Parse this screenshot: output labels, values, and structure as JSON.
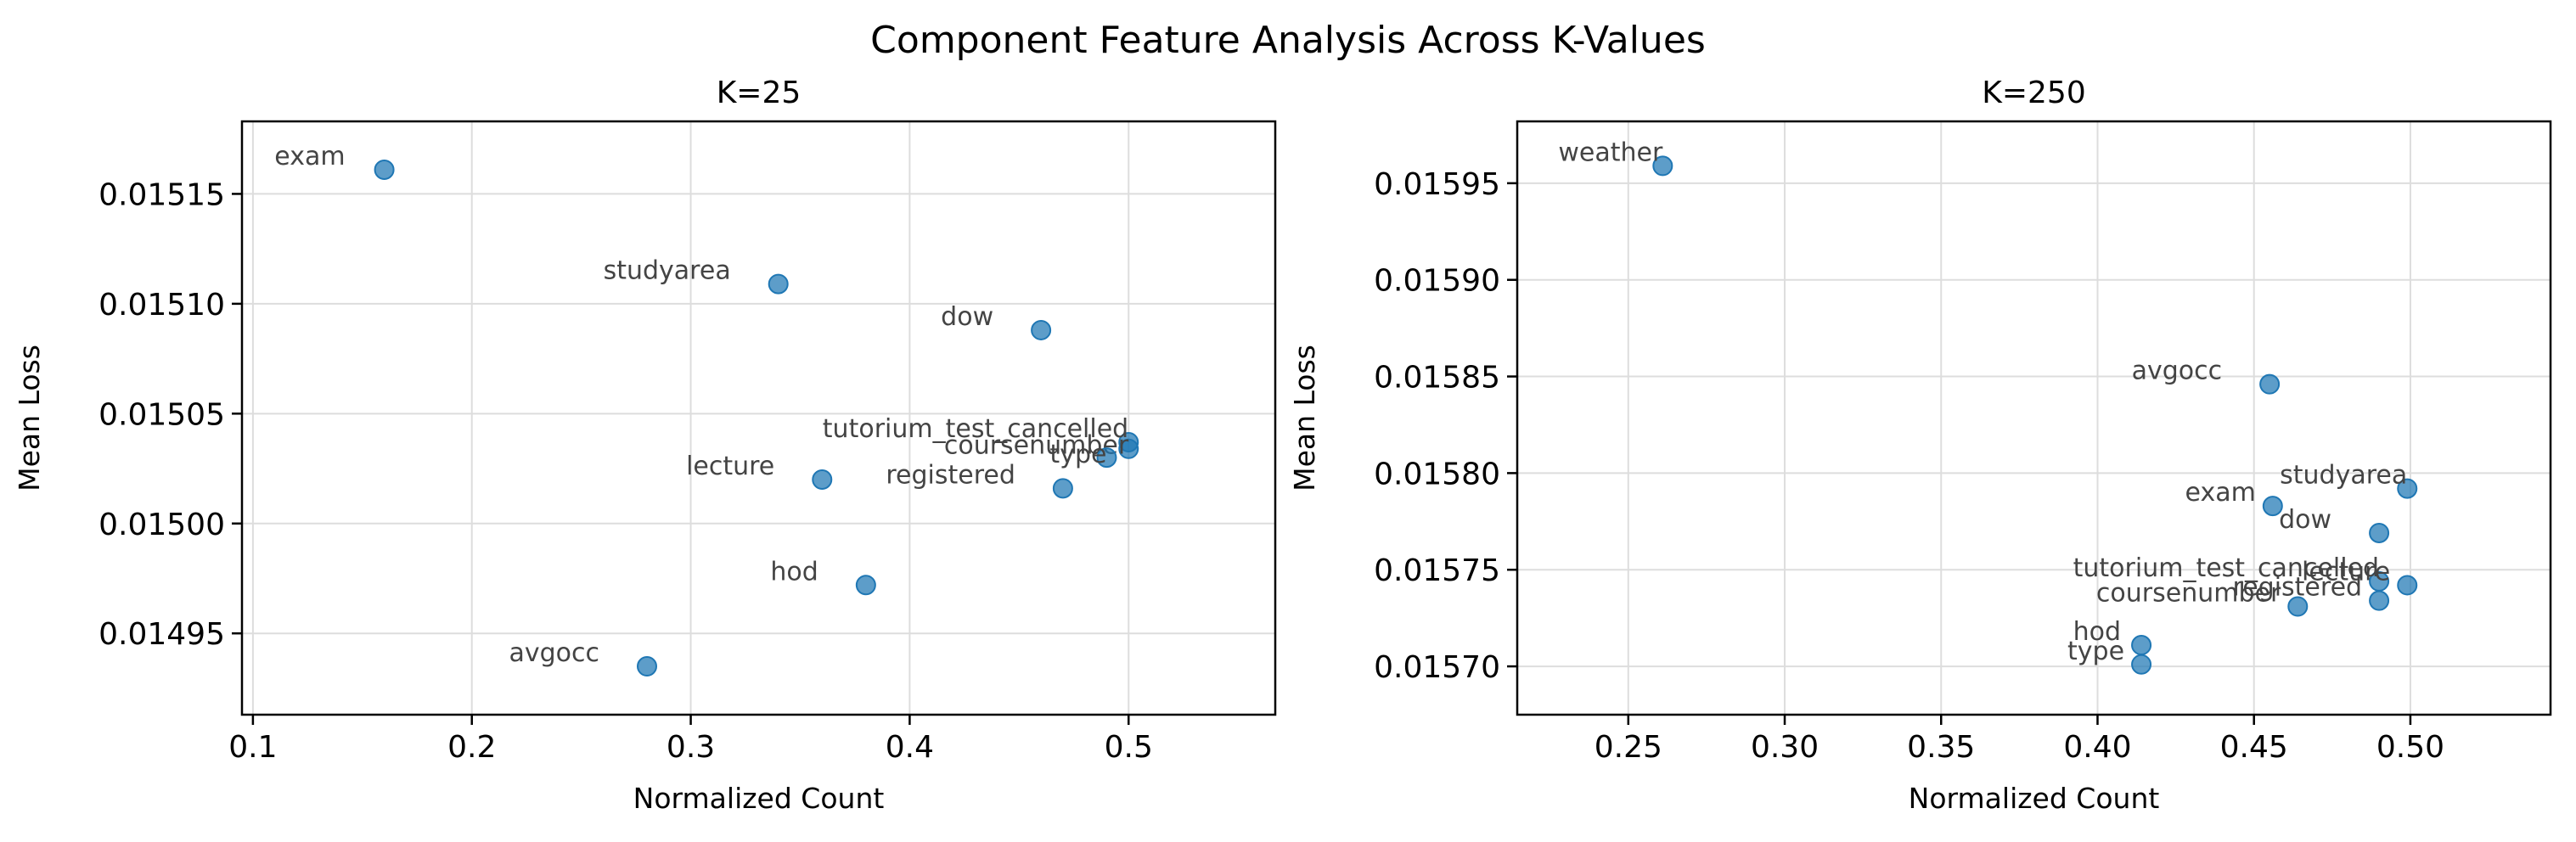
{
  "figure": {
    "title": "Component Feature Analysis Across K-Values"
  },
  "style": {
    "point_color": "#1f77b4",
    "label_color": "#444444",
    "grid_color": "#dddddd"
  },
  "chart_data": [
    {
      "type": "scatter",
      "title": "K=25",
      "xlabel": "Normalized Count",
      "ylabel": "Mean Loss",
      "xlim": [
        0.095,
        0.567
      ],
      "ylim": [
        0.014913,
        0.015183
      ],
      "xticks": [
        0.1,
        0.2,
        0.3,
        0.4,
        0.5
      ],
      "xtick_labels": [
        "0.1",
        "0.2",
        "0.3",
        "0.4",
        "0.5"
      ],
      "yticks": [
        0.01495,
        0.015,
        0.01505,
        0.0151,
        0.01515
      ],
      "ytick_labels": [
        "0.01495",
        "0.01500",
        "0.01505",
        "0.01510",
        "0.01515"
      ],
      "grid": true,
      "points": [
        {
          "label": "exam",
          "x": 0.16,
          "y": 0.015161
        },
        {
          "label": "studyarea",
          "x": 0.34,
          "y": 0.015109
        },
        {
          "label": "dow",
          "x": 0.46,
          "y": 0.015088
        },
        {
          "label": "tutorium_test_cancelled",
          "x": 0.5,
          "y": 0.015037
        },
        {
          "label": "coursenumber",
          "x": 0.5,
          "y": 0.015034
        },
        {
          "label": "type",
          "x": 0.49,
          "y": 0.01503
        },
        {
          "label": "lecture",
          "x": 0.36,
          "y": 0.01502
        },
        {
          "label": "registered",
          "x": 0.47,
          "y": 0.015016
        },
        {
          "label": "hod",
          "x": 0.38,
          "y": 0.014972
        },
        {
          "label": "avgocc",
          "x": 0.28,
          "y": 0.014935
        }
      ]
    },
    {
      "type": "scatter",
      "title": "K=250",
      "xlabel": "Normalized Count",
      "ylabel": "Mean Loss",
      "xlim": [
        0.2145,
        0.5448
      ],
      "ylim": [
        0.015675,
        0.015982
      ],
      "xticks": [
        0.25,
        0.3,
        0.35,
        0.4,
        0.45,
        0.5
      ],
      "xtick_labels": [
        "0.25",
        "0.30",
        "0.35",
        "0.40",
        "0.45",
        "0.50"
      ],
      "yticks": [
        0.0157,
        0.01575,
        0.0158,
        0.01585,
        0.0159,
        0.01595
      ],
      "ytick_labels": [
        "0.01570",
        "0.01575",
        "0.01580",
        "0.01585",
        "0.01590",
        "0.01595"
      ],
      "grid": true,
      "points": [
        {
          "label": "weather",
          "x": 0.261,
          "y": 0.015959
        },
        {
          "label": "avgocc",
          "x": 0.455,
          "y": 0.015846
        },
        {
          "label": "studyarea",
          "x": 0.499,
          "y": 0.015792
        },
        {
          "label": "exam",
          "x": 0.456,
          "y": 0.015783
        },
        {
          "label": "dow",
          "x": 0.49,
          "y": 0.015769
        },
        {
          "label": "tutorium_test_cancelled",
          "x": 0.49,
          "y": 0.015744
        },
        {
          "label": "lecture",
          "x": 0.499,
          "y": 0.015742
        },
        {
          "label": "registered",
          "x": 0.49,
          "y": 0.015734
        },
        {
          "label": "coursenumber",
          "x": 0.464,
          "y": 0.015731
        },
        {
          "label": "hod",
          "x": 0.414,
          "y": 0.015711
        },
        {
          "label": "type",
          "x": 0.414,
          "y": 0.015701
        }
      ]
    }
  ]
}
